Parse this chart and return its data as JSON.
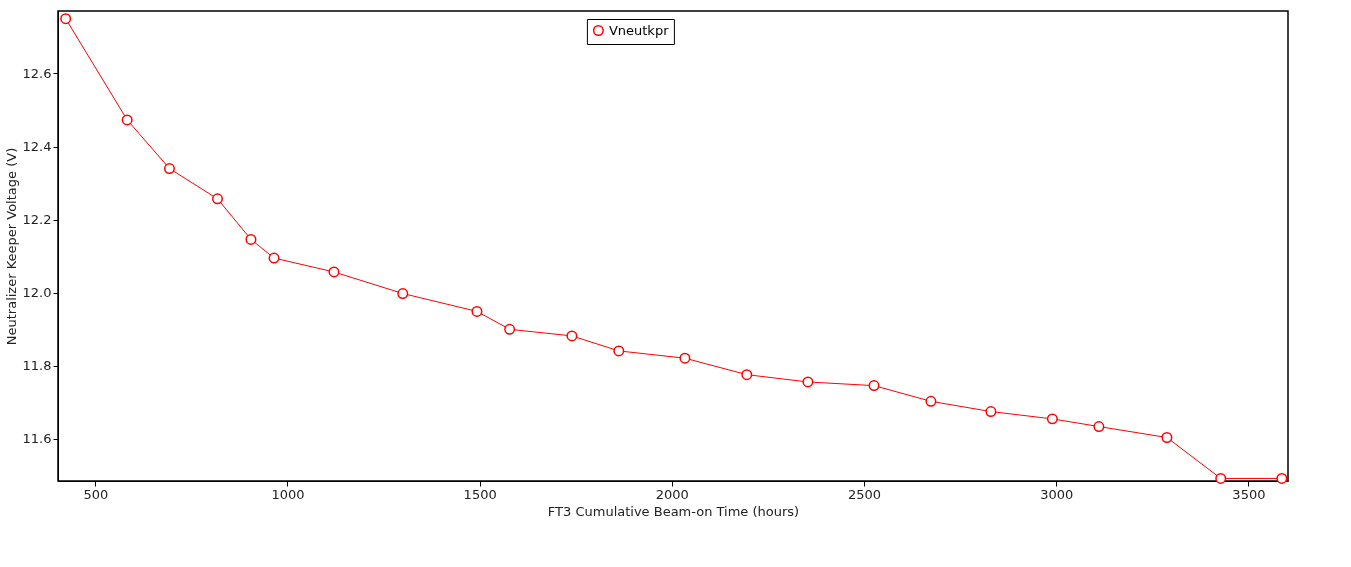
{
  "chart_data": {
    "type": "line",
    "xlabel": "FT3 Cumulative Beam-on Time  (hours)",
    "ylabel": "Neutralizer Keeper Voltage  (V)",
    "x": [
      423,
      583,
      693,
      818,
      905,
      965,
      1121,
      1300,
      1493,
      1578,
      1740,
      1862,
      2034,
      2195,
      2354,
      2526,
      2674,
      2830,
      2990,
      3111,
      3288,
      3428,
      3587
    ],
    "series": [
      {
        "name": "Vneutkpr",
        "color": "#ff0000",
        "values": [
          12.75,
          12.473,
          12.34,
          12.257,
          12.146,
          12.095,
          12.057,
          11.998,
          11.949,
          11.9,
          11.882,
          11.841,
          11.821,
          11.776,
          11.756,
          11.746,
          11.703,
          11.675,
          11.655,
          11.634,
          11.604,
          11.492,
          11.492
        ]
      }
    ],
    "xlim": [
      403,
      3603
    ],
    "ylim": [
      11.485,
      12.771
    ],
    "xticks": [
      500,
      1000,
      1500,
      2000,
      2500,
      3000,
      3500
    ],
    "yticks": [
      11.6,
      11.8,
      {
        "value": 12.0,
        "label": "12.0"
      },
      12.2,
      12.4,
      12.6
    ],
    "grid": false,
    "legend": "top",
    "marker": "circle",
    "line_style": "solid"
  }
}
